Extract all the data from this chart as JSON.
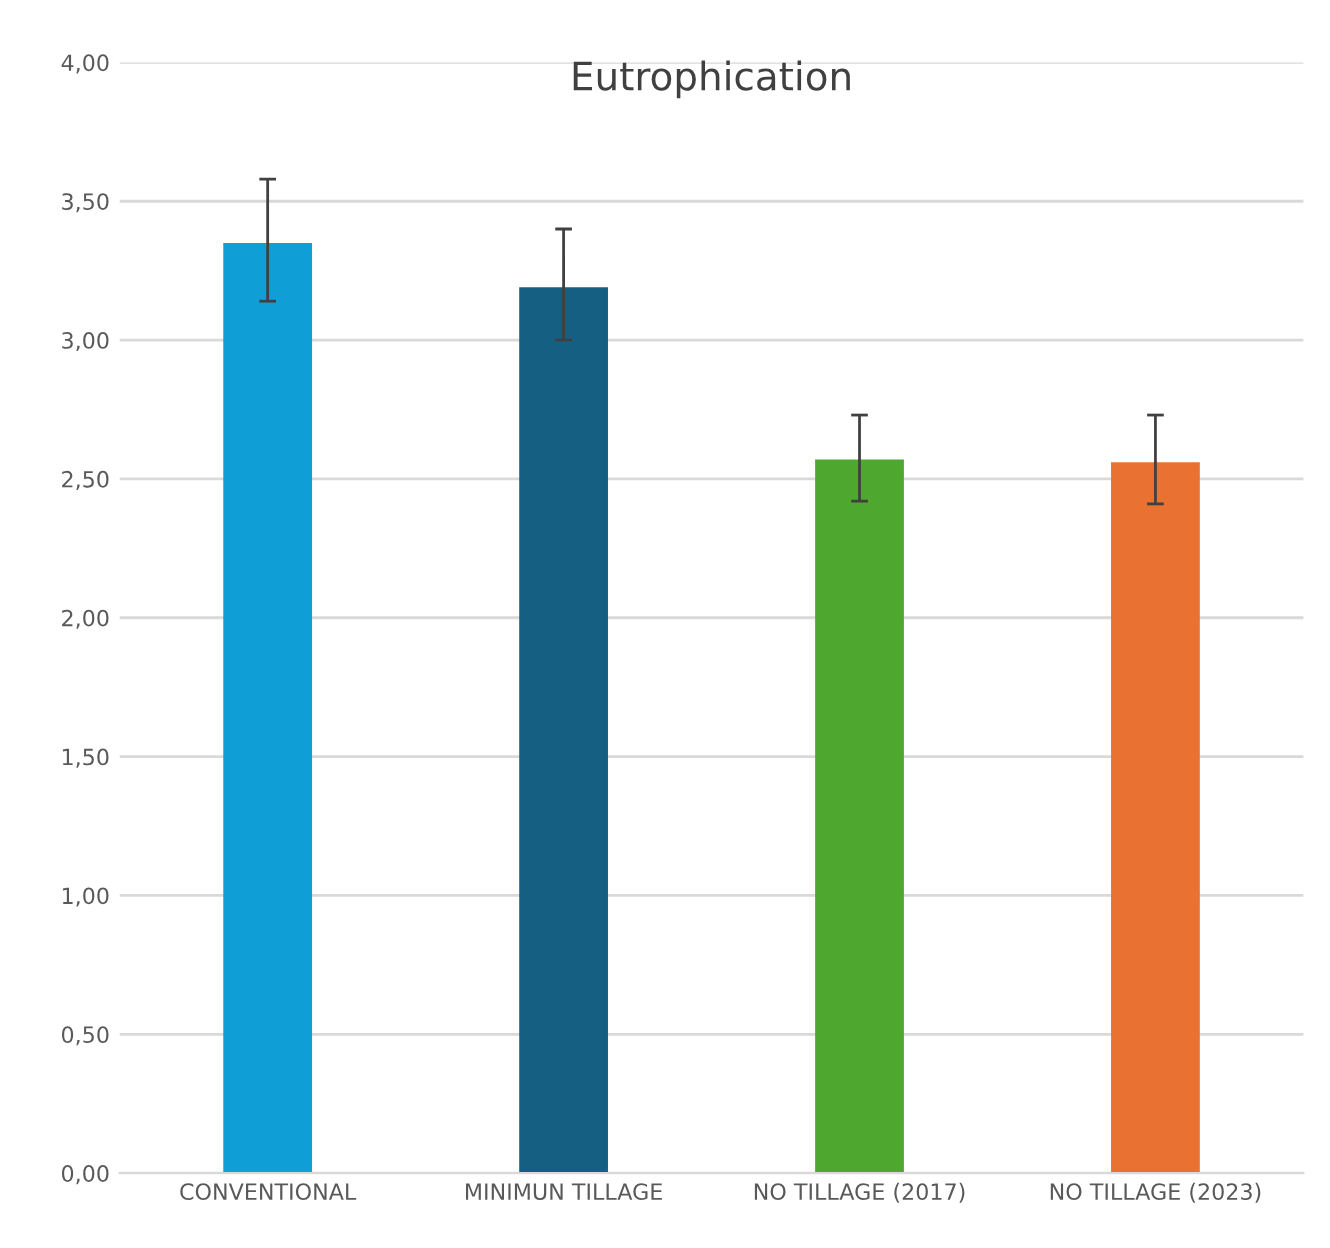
{
  "chart_data": {
    "type": "bar",
    "title": "Eutrophication",
    "categories": [
      "CONVENTIONAL",
      "MINIMUN TILLAGE",
      "NO TILLAGE (2017)",
      "NO TILLAGE (2023)"
    ],
    "values": [
      3.35,
      3.19,
      2.57,
      2.56
    ],
    "errors": [
      [
        3.14,
        3.58
      ],
      [
        3.0,
        3.4
      ],
      [
        2.42,
        2.73
      ],
      [
        2.41,
        2.73
      ]
    ],
    "colors": [
      "#0f9ed5",
      "#156082",
      "#4ea72e",
      "#e97132"
    ],
    "ylim": [
      0,
      4
    ],
    "yticks": [
      {
        "value": 0,
        "label": "0,00"
      },
      {
        "value": 0.5,
        "label": "0,50"
      },
      {
        "value": 1,
        "label": "1,00"
      },
      {
        "value": 1.5,
        "label": "1,50"
      },
      {
        "value": 2,
        "label": "2,00"
      },
      {
        "value": 2.5,
        "label": "2,50"
      },
      {
        "value": 3,
        "label": "3,00"
      },
      {
        "value": 3.5,
        "label": "3,50"
      },
      {
        "value": 4,
        "label": "4,00"
      }
    ],
    "grid": "y"
  }
}
